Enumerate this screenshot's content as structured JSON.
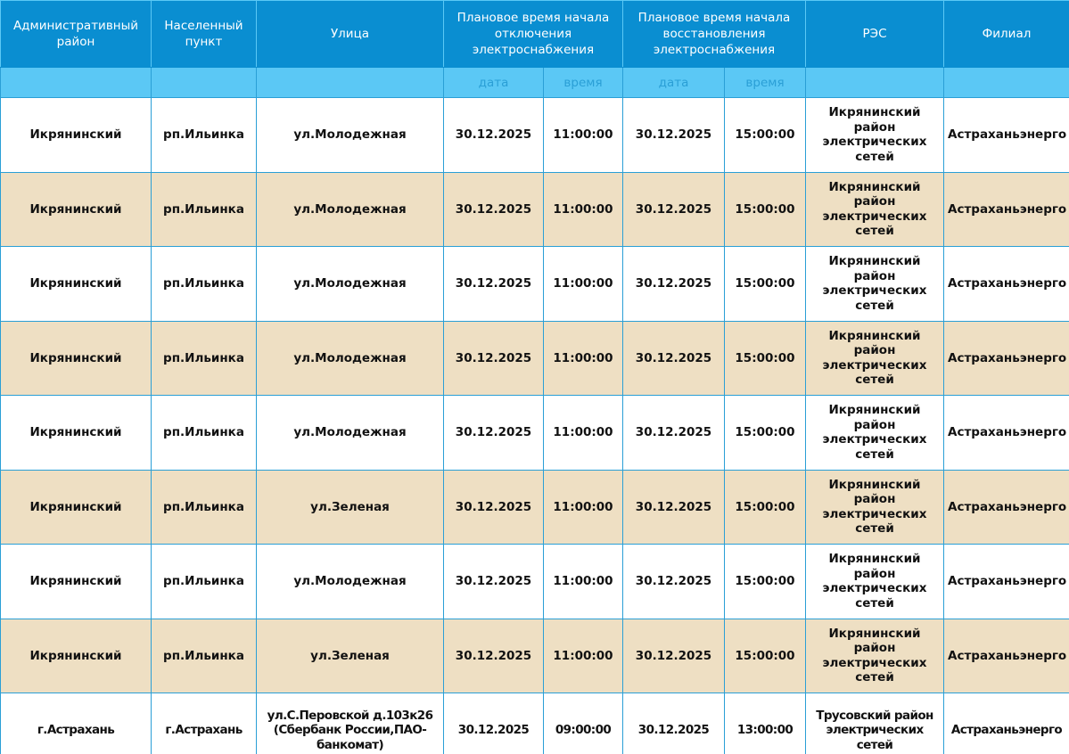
{
  "headers": {
    "district": "Административный район",
    "locality": "Населенный пункт",
    "street": "Улица",
    "off_start": "Плановое время начала отключения электроснабжения",
    "restore_start": "Плановое время начала восстановления электроснабжения",
    "res": "РЭС",
    "branch": "Филиал",
    "date": "дата",
    "time": "время"
  },
  "colors": {
    "header": "#0a8ed1",
    "subheader": "#5bc8f5",
    "row_alt": "#eedfc3",
    "border": "#2a9fd6"
  },
  "rows": [
    {
      "district": "Икрянинский",
      "locality": "рп.Ильинка",
      "street": "ул.Молодежная",
      "off_date": "30.12.2025",
      "off_time": "11:00:00",
      "on_date": "30.12.2025",
      "on_time": "15:00:00",
      "res": "Икрянинский район электрических сетей",
      "branch": "Астраханьэнерго"
    },
    {
      "district": "Икрянинский",
      "locality": "рп.Ильинка",
      "street": "ул.Молодежная",
      "off_date": "30.12.2025",
      "off_time": "11:00:00",
      "on_date": "30.12.2025",
      "on_time": "15:00:00",
      "res": "Икрянинский район электрических сетей",
      "branch": "Астраханьэнерго"
    },
    {
      "district": "Икрянинский",
      "locality": "рп.Ильинка",
      "street": "ул.Молодежная",
      "off_date": "30.12.2025",
      "off_time": "11:00:00",
      "on_date": "30.12.2025",
      "on_time": "15:00:00",
      "res": "Икрянинский район электрических сетей",
      "branch": "Астраханьэнерго"
    },
    {
      "district": "Икрянинский",
      "locality": "рп.Ильинка",
      "street": "ул.Молодежная",
      "off_date": "30.12.2025",
      "off_time": "11:00:00",
      "on_date": "30.12.2025",
      "on_time": "15:00:00",
      "res": "Икрянинский район электрических сетей",
      "branch": "Астраханьэнерго"
    },
    {
      "district": "Икрянинский",
      "locality": "рп.Ильинка",
      "street": "ул.Молодежная",
      "off_date": "30.12.2025",
      "off_time": "11:00:00",
      "on_date": "30.12.2025",
      "on_time": "15:00:00",
      "res": "Икрянинский район электрических сетей",
      "branch": "Астраханьэнерго"
    },
    {
      "district": "Икрянинский",
      "locality": "рп.Ильинка",
      "street": "ул.Зеленая",
      "off_date": "30.12.2025",
      "off_time": "11:00:00",
      "on_date": "30.12.2025",
      "on_time": "15:00:00",
      "res": "Икрянинский район электрических сетей",
      "branch": "Астраханьэнерго"
    },
    {
      "district": "Икрянинский",
      "locality": "рп.Ильинка",
      "street": "ул.Молодежная",
      "off_date": "30.12.2025",
      "off_time": "11:00:00",
      "on_date": "30.12.2025",
      "on_time": "15:00:00",
      "res": "Икрянинский район электрических сетей",
      "branch": "Астраханьэнерго"
    },
    {
      "district": "Икрянинский",
      "locality": "рп.Ильинка",
      "street": "ул.Зеленая",
      "off_date": "30.12.2025",
      "off_time": "11:00:00",
      "on_date": "30.12.2025",
      "on_time": "15:00:00",
      "res": "Икрянинский район электрических сетей",
      "branch": "Астраханьэнерго"
    },
    {
      "district": "г.Астрахань",
      "locality": "г.Астрахань",
      "street": "ул.С.Перовской д.103к26 (Сбербанк России,ПАО-банкомат)",
      "off_date": "30.12.2025",
      "off_time": "09:00:00",
      "on_date": "30.12.2025",
      "on_time": "13:00:00",
      "res": "Трусовский район электрических сетей",
      "branch": "Астраханьэнерго"
    }
  ]
}
